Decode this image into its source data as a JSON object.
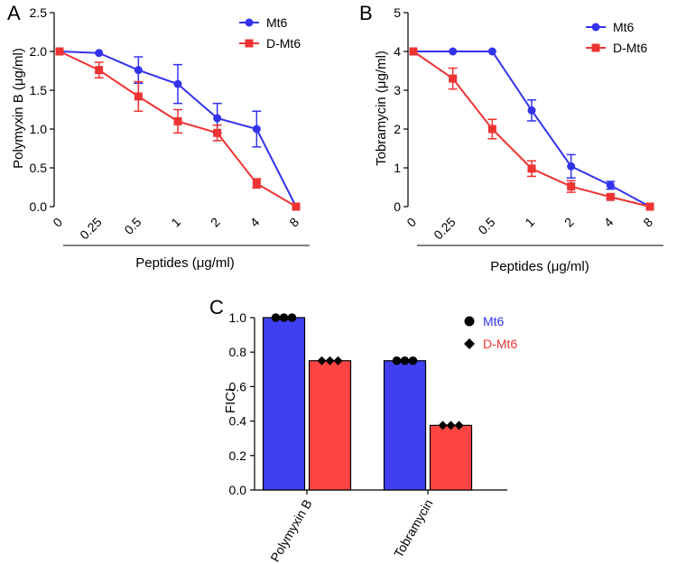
{
  "chart_data": [
    {
      "panel": "A",
      "type": "line",
      "ylabel": "Polymyxin B (μg/ml)",
      "xlabel": "Peptides (μg/ml)",
      "categories": [
        "0",
        "0.25",
        "0.5",
        "1",
        "2",
        "4",
        "8"
      ],
      "ylim": [
        0,
        2.5
      ],
      "yticks": [
        "0.0",
        "0.5",
        "1.0",
        "1.5",
        "2.0",
        "2.5"
      ],
      "ytick_values": [
        0,
        0.5,
        1.0,
        1.5,
        2.0,
        2.5
      ],
      "legend_position": "top-right",
      "series": [
        {
          "name": "Mt6",
          "color": "#3333ee",
          "marker": "circle",
          "values": [
            2.0,
            1.98,
            1.76,
            1.58,
            1.14,
            1.0,
            0.0
          ],
          "errors": [
            0,
            0,
            0.17,
            0.25,
            0.19,
            0.23,
            0
          ]
        },
        {
          "name": "D-Mt6",
          "color": "#ee3333",
          "marker": "square",
          "values": [
            2.0,
            1.76,
            1.42,
            1.1,
            0.95,
            0.3,
            0.0
          ],
          "errors": [
            0,
            0.1,
            0.19,
            0.15,
            0.1,
            0.06,
            0
          ]
        }
      ]
    },
    {
      "panel": "B",
      "type": "line",
      "ylabel": "Tobramycin (μg/ml)",
      "xlabel": "Peptides (μg/ml)",
      "categories": [
        "0",
        "0.25",
        "0.5",
        "1",
        "2",
        "4",
        "8"
      ],
      "ylim": [
        0,
        5
      ],
      "yticks": [
        "0",
        "1",
        "2",
        "3",
        "4",
        "5"
      ],
      "ytick_values": [
        0,
        1,
        2,
        3,
        4,
        5
      ],
      "legend_position": "top-right",
      "series": [
        {
          "name": "Mt6",
          "color": "#3333ee",
          "marker": "circle",
          "values": [
            4.0,
            4.0,
            4.0,
            2.48,
            1.04,
            0.55,
            0.0
          ],
          "errors": [
            0,
            0,
            0,
            0.27,
            0.3,
            0.1,
            0
          ]
        },
        {
          "name": "D-Mt6",
          "color": "#ee3333",
          "marker": "square",
          "values": [
            4.0,
            3.3,
            2.0,
            0.98,
            0.52,
            0.25,
            0.0
          ],
          "errors": [
            0,
            0.27,
            0.25,
            0.2,
            0.15,
            0.05,
            0
          ]
        }
      ]
    },
    {
      "panel": "C",
      "type": "bar",
      "ylabel": "FICI",
      "categories": [
        "Polymyxin B",
        "Tobramycin"
      ],
      "ylim": [
        0,
        1.0
      ],
      "yticks": [
        "0.0",
        "0.2",
        "0.4",
        "0.6",
        "0.8",
        "1.0"
      ],
      "ytick_values": [
        0,
        0.2,
        0.4,
        0.6,
        0.8,
        1.0
      ],
      "legend_position": "top-right",
      "series": [
        {
          "name": "Mt6",
          "color": "#4040f0",
          "text_color": "#3333ee",
          "marker": "circle",
          "values": [
            1.0,
            0.75
          ],
          "points_per_bar": 3
        },
        {
          "name": "D-Mt6",
          "color": "#ff4444",
          "text_color": "#ee3333",
          "marker": "diamond",
          "values": [
            0.75,
            0.375
          ],
          "points_per_bar": 3
        }
      ]
    }
  ]
}
